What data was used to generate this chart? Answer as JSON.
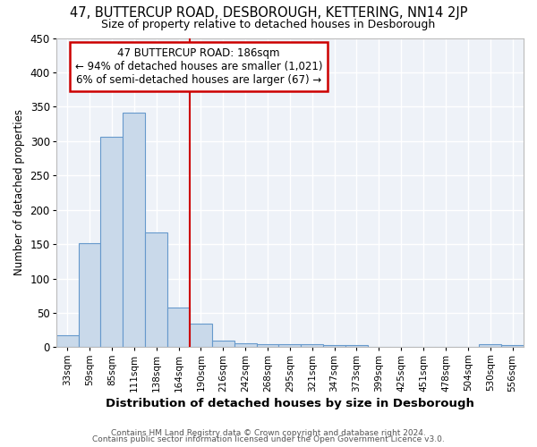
{
  "title": "47, BUTTERCUP ROAD, DESBOROUGH, KETTERING, NN14 2JP",
  "subtitle": "Size of property relative to detached houses in Desborough",
  "xlabel": "Distribution of detached houses by size in Desborough",
  "ylabel": "Number of detached properties",
  "categories": [
    "33sqm",
    "59sqm",
    "85sqm",
    "111sqm",
    "138sqm",
    "164sqm",
    "190sqm",
    "216sqm",
    "242sqm",
    "268sqm",
    "295sqm",
    "321sqm",
    "347sqm",
    "373sqm",
    "399sqm",
    "425sqm",
    "451sqm",
    "478sqm",
    "504sqm",
    "530sqm",
    "556sqm"
  ],
  "values": [
    18,
    152,
    306,
    341,
    167,
    58,
    35,
    10,
    6,
    5,
    4,
    4,
    3,
    3,
    0,
    0,
    0,
    0,
    0,
    4,
    3
  ],
  "bar_color": "#c9d9ea",
  "bar_edge_color": "#6699cc",
  "vline_color": "#cc0000",
  "vline_x_index": 6,
  "annotation_line1": "47 BUTTERCUP ROAD: 186sqm",
  "annotation_line2": "← 94% of detached houses are smaller (1,021)",
  "annotation_line3": "6% of semi-detached houses are larger (67) →",
  "annotation_box_edge_color": "#cc0000",
  "ylim": [
    0,
    450
  ],
  "yticks": [
    0,
    50,
    100,
    150,
    200,
    250,
    300,
    350,
    400,
    450
  ],
  "background_color": "#eef2f8",
  "plot_bg_color": "#eef2f8",
  "fig_bg_color": "#ffffff",
  "grid_color": "#ffffff",
  "footer_line1": "Contains HM Land Registry data © Crown copyright and database right 2024.",
  "footer_line2": "Contains public sector information licensed under the Open Government Licence v3.0."
}
